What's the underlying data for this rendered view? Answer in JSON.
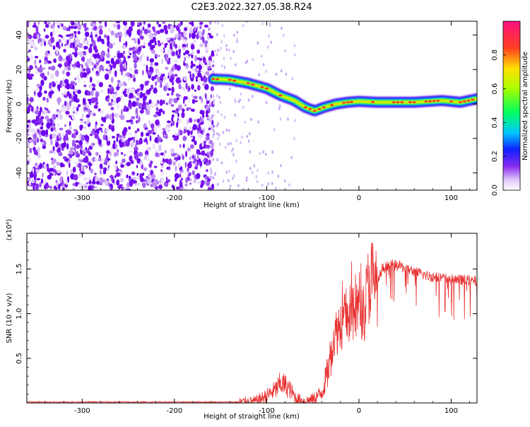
{
  "figure_title": "C2E3.2022.327.05.38.R24",
  "chart_data": [
    {
      "type": "heatmap",
      "xlabel": "Height of straight line (km)",
      "ylabel": "Frequency (Hz)",
      "xlim": [
        -360,
        128
      ],
      "ylim": [
        -50,
        48
      ],
      "x_ticks": [
        -300,
        -200,
        -100,
        0,
        100
      ],
      "y_ticks": [
        -40,
        -20,
        0,
        20,
        40
      ],
      "colorbar": {
        "label": "Normalized spectral amplitude",
        "range": [
          0,
          1
        ],
        "ticks": [
          "0.0",
          "0.2",
          "0.4",
          "0.6",
          "0.8"
        ],
        "colors": [
          "#e6d8f8",
          "#b070f0",
          "#6a00ee",
          "#0010ff",
          "#00c8ff",
          "#00ff60",
          "#a0ff00",
          "#ffe000",
          "#ff3030",
          "#ff1080"
        ]
      },
      "noise_region_x": [
        -360,
        -158
      ],
      "signal_track": [
        {
          "x": -158,
          "y": 14.5
        },
        {
          "x": -140,
          "y": 14
        },
        {
          "x": -120,
          "y": 12
        },
        {
          "x": -100,
          "y": 9
        },
        {
          "x": -85,
          "y": 5
        },
        {
          "x": -70,
          "y": 2
        },
        {
          "x": -58,
          "y": -2
        },
        {
          "x": -48,
          "y": -4
        },
        {
          "x": -38,
          "y": -2
        },
        {
          "x": -25,
          "y": 0
        },
        {
          "x": -12,
          "y": 1
        },
        {
          "x": 0,
          "y": 1.5
        },
        {
          "x": 20,
          "y": 1
        },
        {
          "x": 60,
          "y": 1
        },
        {
          "x": 90,
          "y": 2
        },
        {
          "x": 110,
          "y": 1
        },
        {
          "x": 128,
          "y": 3
        }
      ]
    },
    {
      "type": "line",
      "xlabel": "Height of straight line (km)",
      "ylabel": "SNR (10 * v/v)",
      "y_multiplier": "(x10⁴)",
      "xlim": [
        -360,
        128
      ],
      "ylim": [
        0,
        1.9
      ],
      "x_ticks": [
        -300,
        -200,
        -100,
        0,
        100
      ],
      "y_ticks": [
        "0.5",
        "1.0",
        "1.5"
      ],
      "series": [
        {
          "color": "#e83030",
          "x": [
            -360,
            -130,
            -112,
            -100,
            -90,
            -85,
            -80,
            -75,
            -68,
            -60,
            -50,
            -40,
            -33,
            -28,
            -22,
            -16,
            -10,
            -5,
            0,
            5,
            10,
            14,
            18,
            25,
            35,
            45,
            60,
            75,
            90,
            105,
            120,
            128
          ],
          "y": [
            0.01,
            0.01,
            0.02,
            0.08,
            0.15,
            0.22,
            0.2,
            0.15,
            0.05,
            0.02,
            0.04,
            0.12,
            0.38,
            0.72,
            0.85,
            0.95,
            1.0,
            0.95,
            1.12,
            1.0,
            1.3,
            1.42,
            1.25,
            1.5,
            1.55,
            1.53,
            1.47,
            1.42,
            1.4,
            1.38,
            1.37,
            1.36
          ]
        }
      ]
    }
  ]
}
